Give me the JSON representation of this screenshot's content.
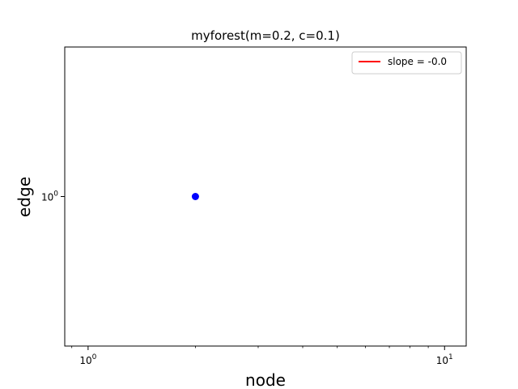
{
  "chart_data": {
    "type": "scatter",
    "title": "myforest(m=0.2, c=0.1)",
    "xlabel": "node",
    "ylabel": "edge",
    "xscale": "log",
    "yscale": "log",
    "xlim": [
      0.86,
      11.5
    ],
    "ylim": [
      0.25,
      4.0
    ],
    "x_ticks": [
      {
        "value": 1,
        "base": "10",
        "exp": "0"
      },
      {
        "value": 10,
        "base": "10",
        "exp": "1"
      }
    ],
    "y_ticks": [
      {
        "value": 1,
        "base": "10",
        "exp": "0"
      }
    ],
    "grid": false,
    "legend_position": "top-right",
    "series": [
      {
        "kind": "scatter",
        "x": [
          2
        ],
        "y": [
          1
        ],
        "color": "#0000ff"
      },
      {
        "kind": "line",
        "name": "slope = -0.0",
        "x": [],
        "y": [],
        "color": "#ff0000"
      }
    ]
  }
}
